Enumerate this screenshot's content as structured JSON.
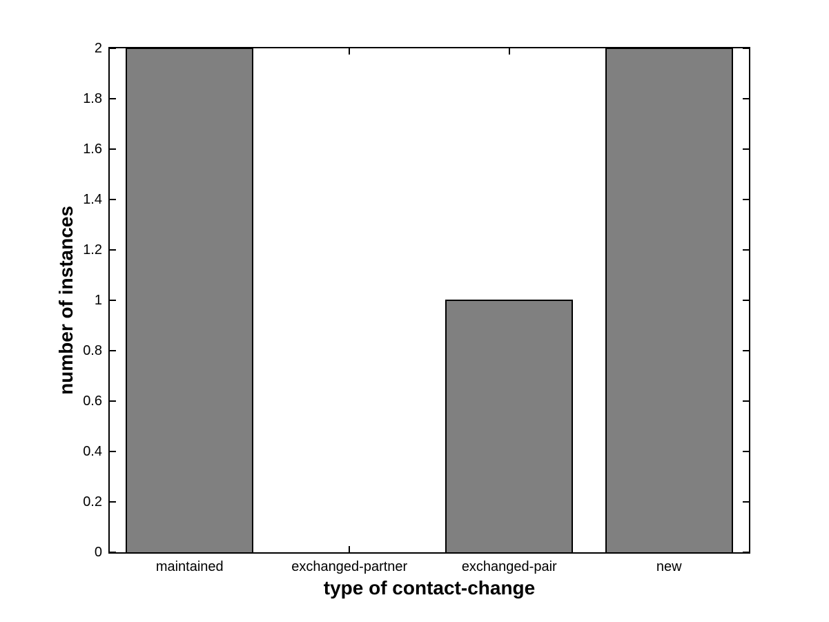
{
  "figure": {
    "background": "#ffffff"
  },
  "chart_data": {
    "type": "bar",
    "title": "",
    "xlabel": "type of contact-change",
    "ylabel": "number of instances",
    "categories": [
      "maintained",
      "exchanged-partner",
      "exchanged-pair",
      "new"
    ],
    "values": [
      2,
      0,
      1,
      2
    ],
    "ylim": [
      0,
      2
    ],
    "yticks": [
      0,
      0.2,
      0.4,
      0.6,
      0.8,
      1,
      1.2,
      1.4,
      1.6,
      1.8,
      2
    ],
    "ytick_labels": [
      "0",
      "0.2",
      "0.4",
      "0.6",
      "0.8",
      "1",
      "1.2",
      "1.4",
      "1.6",
      "1.8",
      "2"
    ],
    "bar_color": "#808080",
    "bar_edge_color": "#000000",
    "axis_color": "#000000",
    "background": "#ffffff",
    "grid": false,
    "legend": "none",
    "bar_width_fraction": 0.8,
    "tick_direction": "in"
  }
}
